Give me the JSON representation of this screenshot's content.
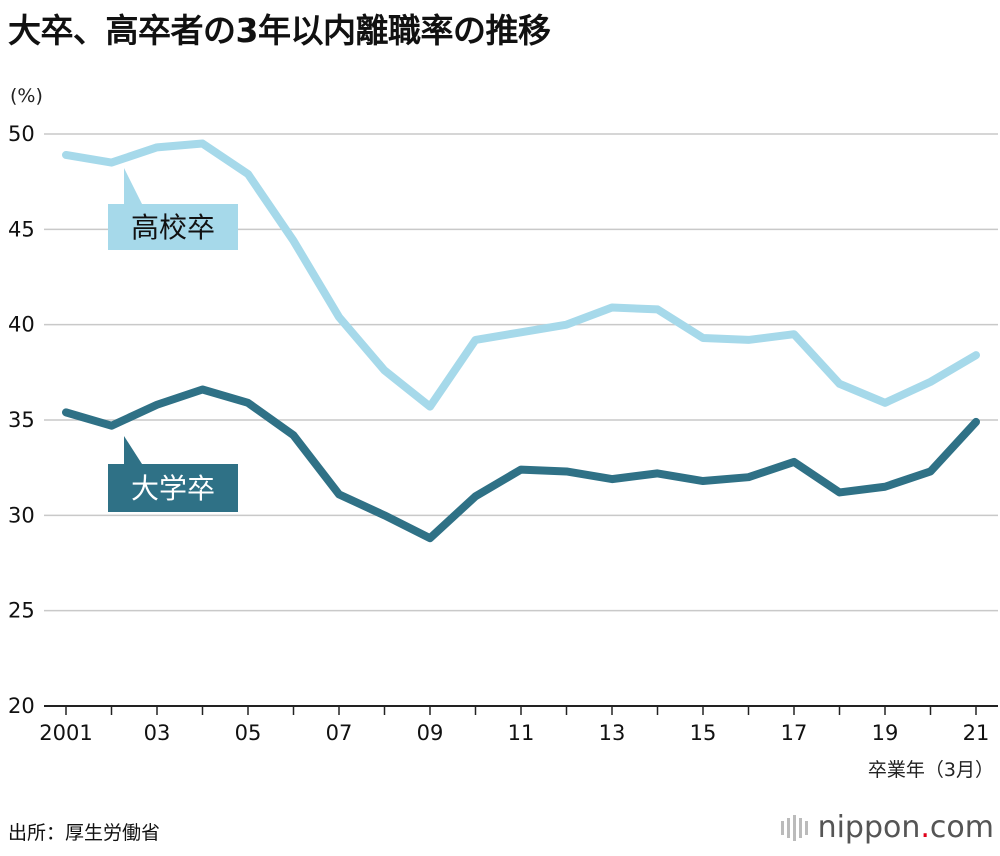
{
  "title": "大卒、高卒者の3年以内離職率の推移",
  "source": "出所：厚生労働省",
  "brand": {
    "name": "nippon",
    "dot": ".",
    "suffix": "com",
    "dot_color": "#e0001b"
  },
  "chart_data": {
    "type": "line",
    "ylabel": "(%)",
    "xlabel": "卒業年（3月）",
    "ylim": [
      20,
      50
    ],
    "yticks": [
      20,
      25,
      30,
      35,
      40,
      45,
      50
    ],
    "grid": true,
    "x": [
      2001,
      2002,
      2003,
      2004,
      2005,
      2006,
      2007,
      2008,
      2009,
      2010,
      2011,
      2012,
      2013,
      2014,
      2015,
      2016,
      2017,
      2018,
      2019,
      2020,
      2021
    ],
    "xtick_values": [
      2001,
      2003,
      2005,
      2007,
      2009,
      2011,
      2013,
      2015,
      2017,
      2019,
      2021
    ],
    "xtick_labels": [
      "2001",
      "03",
      "05",
      "07",
      "09",
      "11",
      "13",
      "15",
      "17",
      "19",
      "21"
    ],
    "series": [
      {
        "name": "高校卒",
        "color": "#a6d9ea",
        "values": [
          48.9,
          48.5,
          49.3,
          49.5,
          47.9,
          44.4,
          40.4,
          37.6,
          35.7,
          39.2,
          39.6,
          40.0,
          40.9,
          40.8,
          39.3,
          39.2,
          39.5,
          36.9,
          35.9,
          37.0,
          38.4
        ]
      },
      {
        "name": "大学卒",
        "color": "#2f7186",
        "values": [
          35.4,
          34.7,
          35.8,
          36.6,
          35.9,
          34.2,
          31.1,
          30.0,
          28.8,
          31.0,
          32.4,
          32.3,
          31.9,
          32.2,
          31.8,
          32.0,
          32.8,
          31.2,
          31.5,
          32.3,
          34.9
        ]
      }
    ]
  }
}
